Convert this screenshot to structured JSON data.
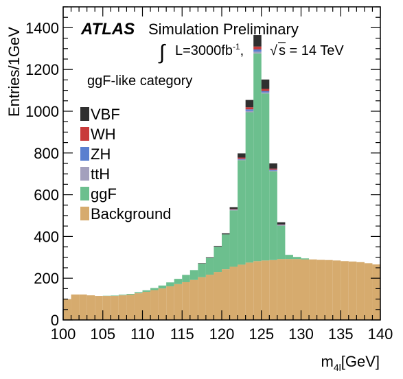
{
  "chart_data": {
    "type": "bar",
    "stacked": true,
    "histogram": true,
    "x_bin_width": 1,
    "experiment": "ATLAS",
    "title": "Simulation Preliminary",
    "luminosity_label": "L=3000fb",
    "luminosity_exponent": "-1",
    "energy_label": "s = 14 TeV",
    "category_label": "ggF-like category",
    "xlabel": "[GeV]",
    "xlabel_main": "m",
    "xlabel_sub": "4l",
    "ylabel": "Entries/1GeV",
    "xlim": [
      100,
      140
    ],
    "ylim": [
      0,
      1500
    ],
    "xticks": [
      "100",
      "105",
      "110",
      "115",
      "120",
      "125",
      "130",
      "135",
      "140"
    ],
    "yticks": [
      "0",
      "200",
      "400",
      "600",
      "800",
      "1000",
      "1200",
      "1400"
    ],
    "legend": [
      {
        "name": "VBF",
        "color": "#2f2f2f"
      },
      {
        "name": "WH",
        "color": "#c83a3a"
      },
      {
        "name": "ZH",
        "color": "#5a7fcf"
      },
      {
        "name": "ttH",
        "color": "#a3a0bd"
      },
      {
        "name": "ggF",
        "color": "#6cbf8e"
      },
      {
        "name": "Background",
        "color": "#d6ab6e"
      }
    ],
    "x": [
      100,
      101,
      102,
      103,
      104,
      105,
      106,
      107,
      108,
      109,
      110,
      111,
      112,
      113,
      114,
      115,
      116,
      117,
      118,
      119,
      120,
      121,
      122,
      123,
      124,
      125,
      126,
      127,
      128,
      129,
      130,
      131,
      132,
      133,
      134,
      135,
      136,
      137,
      138,
      139
    ],
    "series": [
      {
        "name": "Background",
        "values": [
          100,
          122,
          122,
          118,
          115,
          115,
          115,
          118,
          121,
          128,
          135,
          143,
          151,
          161,
          172,
          181,
          192,
          205,
          217,
          230,
          243,
          255,
          265,
          275,
          282,
          285,
          287,
          292,
          292,
          292,
          290,
          290,
          288,
          287,
          285,
          282,
          280,
          277,
          272,
          266
        ]
      },
      {
        "name": "ggF",
        "values": [
          0,
          0,
          0,
          0,
          0,
          1,
          2,
          3,
          4,
          5,
          7,
          10,
          14,
          19,
          25,
          35,
          47,
          65,
          80,
          120,
          167,
          270,
          500,
          720,
          995,
          800,
          425,
          160,
          20,
          10,
          5,
          0,
          0,
          0,
          0,
          0,
          0,
          0,
          0,
          0
        ]
      },
      {
        "name": "ttH",
        "values": [
          0,
          0,
          0,
          0,
          0,
          0,
          0,
          0,
          0,
          0,
          0,
          0,
          0,
          0,
          0,
          0,
          0,
          0,
          0,
          0,
          0,
          2,
          3,
          6,
          8,
          5,
          3,
          2,
          0,
          0,
          0,
          0,
          0,
          0,
          0,
          0,
          0,
          0,
          0,
          0
        ]
      },
      {
        "name": "ZH",
        "values": [
          0,
          0,
          0,
          0,
          0,
          0,
          0,
          0,
          0,
          0,
          0,
          0,
          0,
          0,
          0,
          0,
          0,
          0,
          0,
          0,
          0,
          2,
          4,
          8,
          11,
          7,
          5,
          2,
          0,
          0,
          0,
          0,
          0,
          0,
          0,
          0,
          0,
          0,
          0,
          0
        ]
      },
      {
        "name": "WH",
        "values": [
          0,
          0,
          0,
          0,
          0,
          0,
          0,
          0,
          0,
          0,
          0,
          0,
          0,
          0,
          0,
          0,
          0,
          0,
          0,
          0,
          0,
          3,
          6,
          10,
          14,
          10,
          5,
          2,
          0,
          0,
          0,
          0,
          0,
          0,
          0,
          0,
          0,
          0,
          0,
          0
        ]
      },
      {
        "name": "VBF",
        "values": [
          0,
          0,
          0,
          0,
          0,
          0,
          0,
          0,
          0,
          0,
          0,
          0,
          0,
          0,
          0,
          0,
          0,
          2,
          3,
          4,
          5,
          8,
          20,
          35,
          55,
          45,
          25,
          10,
          0,
          0,
          0,
          0,
          0,
          0,
          0,
          0,
          0,
          0,
          0,
          0
        ]
      }
    ]
  }
}
